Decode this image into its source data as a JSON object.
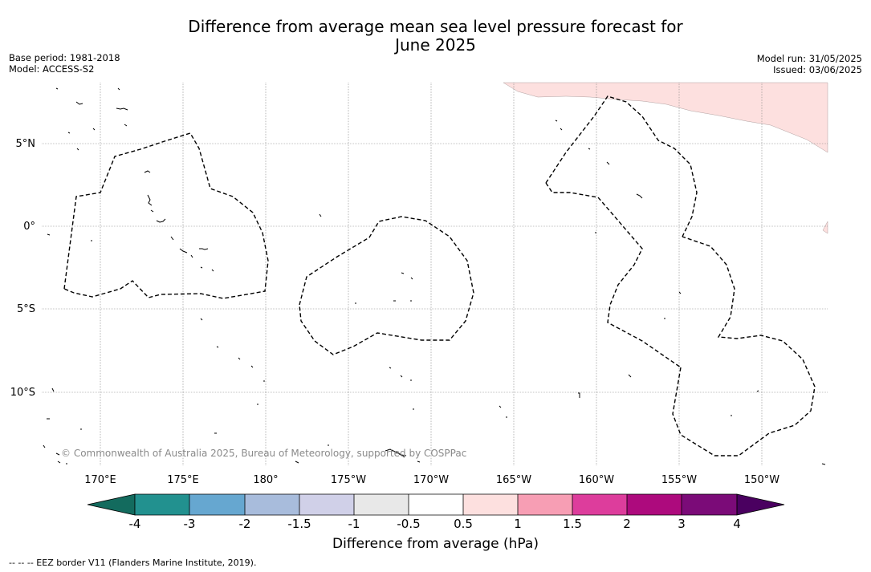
{
  "header": {
    "title_line1": "Difference from average mean sea level pressure forecast for",
    "title_line2": "June 2025",
    "base_period": "Base period: 1981-2018",
    "model": "Model: ACCESS-S2",
    "model_run": "Model run: 31/05/2025",
    "issued": "Issued: 03/06/2025"
  },
  "map": {
    "latitude_labels": [
      "5°N",
      "0°",
      "5°S",
      "10°S"
    ],
    "longitude_labels": [
      "170°E",
      "175°E",
      "180°",
      "175°W",
      "170°W",
      "165°W",
      "160°W",
      "155°W",
      "150°W"
    ],
    "copyright": "© Commonwealth of Australia 2025, Bureau of Meteorology, supported by COSPPac",
    "shaded_category": "0.5 to 1",
    "shade_color": "#fde0df"
  },
  "colorbar": {
    "tick_labels": [
      "-4",
      "-3",
      "-2",
      "-1.5",
      "-1",
      "-0.5",
      "0.5",
      "1",
      "1.5",
      "2",
      "3",
      "4"
    ],
    "colors": [
      "#136b5e",
      "#22918f",
      "#66a7d0",
      "#a8bcdc",
      "#d0d0e8",
      "#e8e8e8",
      "#ffffff",
      "#fde0df",
      "#f79eb4",
      "#dd3d9c",
      "#ad0a7d",
      "#7b0b78",
      "#4a0060"
    ],
    "label": "Difference from average (hPa)"
  },
  "footer": {
    "legend_text": "--  --  -- EEZ border V11 (Flanders Marine Institute, 2019)."
  }
}
